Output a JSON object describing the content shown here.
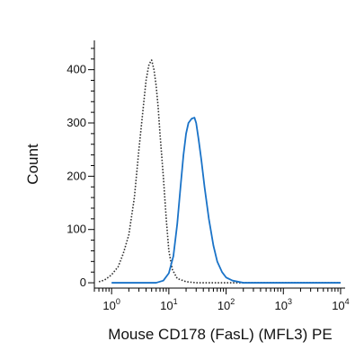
{
  "chart_data": {
    "type": "line",
    "xlabel": "Mouse CD178 (FasL) (MFL3) PE",
    "ylabel": "Count",
    "xscale": "log",
    "xlim": [
      0.5,
      12000
    ],
    "ylim": [
      -10,
      455
    ],
    "x_ticks": [
      {
        "value": 1,
        "base": "10",
        "exp": "0"
      },
      {
        "value": 10,
        "base": "10",
        "exp": "1"
      },
      {
        "value": 100,
        "base": "10",
        "exp": "2"
      },
      {
        "value": 1000,
        "base": "10",
        "exp": "3"
      },
      {
        "value": 10000,
        "base": "10",
        "exp": "4"
      }
    ],
    "y_ticks": [
      "0",
      "100",
      "200",
      "300",
      "400"
    ],
    "grid": false,
    "legend": "none",
    "series": [
      {
        "style": "dotted",
        "color": "#333333",
        "points": [
          [
            0.6,
            2
          ],
          [
            0.75,
            5
          ],
          [
            1.0,
            15
          ],
          [
            1.3,
            30
          ],
          [
            1.6,
            55
          ],
          [
            2.0,
            90
          ],
          [
            2.5,
            160
          ],
          [
            3.0,
            250
          ],
          [
            3.5,
            320
          ],
          [
            4.0,
            380
          ],
          [
            4.5,
            410
          ],
          [
            5.0,
            418
          ],
          [
            5.5,
            400
          ],
          [
            6.0,
            370
          ],
          [
            6.5,
            330
          ],
          [
            7.0,
            280
          ],
          [
            8.0,
            200
          ],
          [
            9.0,
            120
          ],
          [
            10.0,
            60
          ],
          [
            11.5,
            25
          ],
          [
            14.0,
            8
          ],
          [
            20.0,
            2
          ],
          [
            30.0,
            0
          ],
          [
            10000.0,
            0
          ]
        ]
      },
      {
        "style": "solid",
        "color": "#1a73c8",
        "points": [
          [
            1.0,
            0
          ],
          [
            6.0,
            0
          ],
          [
            8.0,
            4
          ],
          [
            10.0,
            18
          ],
          [
            12.0,
            50
          ],
          [
            14.0,
            110
          ],
          [
            16.0,
            180
          ],
          [
            18.0,
            240
          ],
          [
            20.0,
            280
          ],
          [
            22.0,
            300
          ],
          [
            25.0,
            308
          ],
          [
            28.0,
            310
          ],
          [
            30.0,
            300
          ],
          [
            33.0,
            270
          ],
          [
            37.0,
            230
          ],
          [
            42.0,
            180
          ],
          [
            50.0,
            120
          ],
          [
            60.0,
            70
          ],
          [
            70.0,
            40
          ],
          [
            85.0,
            20
          ],
          [
            100.0,
            10
          ],
          [
            130.0,
            4
          ],
          [
            200.0,
            0
          ],
          [
            10000.0,
            0
          ]
        ]
      }
    ]
  }
}
